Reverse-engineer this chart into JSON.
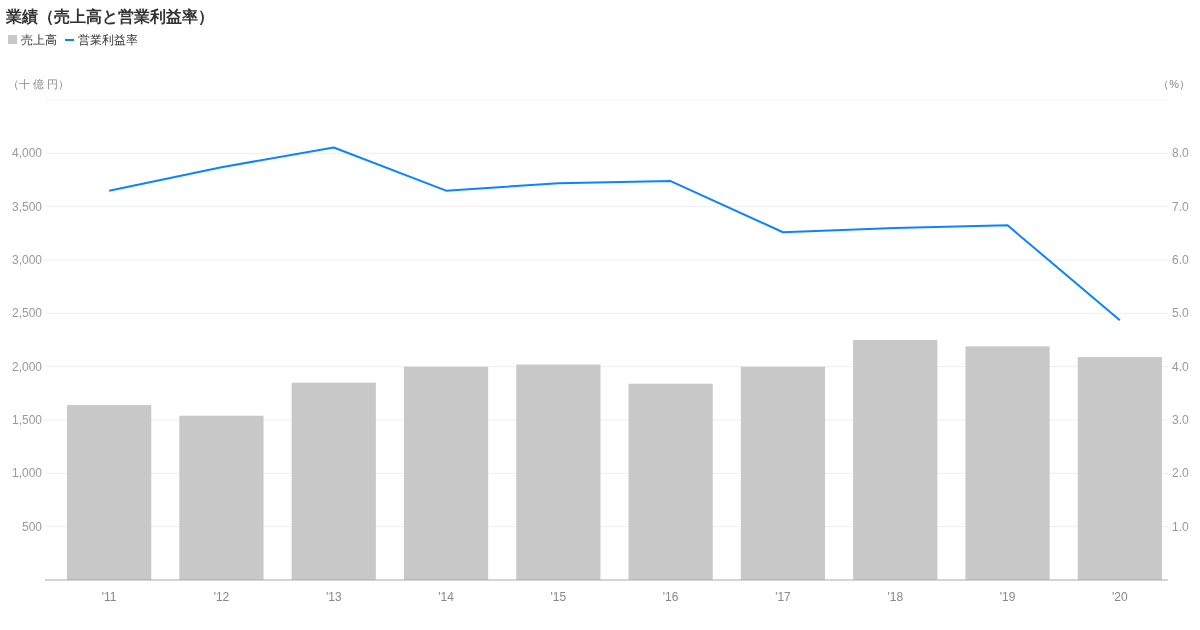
{
  "chart_data": {
    "type": "bar",
    "title": "業績（売上高と営業利益率）",
    "ylabel": "（十 億 円）",
    "y2label": "（%）",
    "categories": [
      "'11",
      "'12",
      "'13",
      "'14",
      "'15",
      "'16",
      "'17",
      "'18",
      "'19",
      "'20"
    ],
    "series": [
      {
        "name": "売上高",
        "color": "#c8c8c8",
        "values": [
          1640,
          1540,
          1850,
          2000,
          2020,
          1840,
          2000,
          2250,
          2190,
          2090
        ]
      },
      {
        "name": "営業利益率",
        "type": "line",
        "axis": "y2",
        "color": "#0a84ff",
        "values": [
          7.3,
          7.74,
          8.11,
          7.3,
          7.44,
          7.48,
          6.52,
          6.6,
          6.65,
          4.87
        ]
      }
    ],
    "ylim": [
      0,
      4500
    ],
    "yticks": [
      {
        "value": 500,
        "label": "500"
      },
      {
        "value": 1000,
        "label": "1,000"
      },
      {
        "value": 1500,
        "label": "1,500"
      },
      {
        "value": 2000,
        "label": "2,000"
      },
      {
        "value": 2500,
        "label": "2,500"
      },
      {
        "value": 3000,
        "label": "3,000"
      },
      {
        "value": 3500,
        "label": "3,500"
      },
      {
        "value": 4000,
        "label": "4,000"
      }
    ],
    "y2lim": [
      0,
      9
    ],
    "y2ticks": [
      {
        "value": 1,
        "label": "1.0"
      },
      {
        "value": 2,
        "label": "2.0"
      },
      {
        "value": 3,
        "label": "3.0"
      },
      {
        "value": 4,
        "label": "4.0"
      },
      {
        "value": 5,
        "label": "5.0"
      },
      {
        "value": 6,
        "label": "6.0"
      },
      {
        "value": 7,
        "label": "7.0"
      },
      {
        "value": 8,
        "label": "8.0"
      }
    ],
    "grid": "y",
    "legend": "top left",
    "marker": "none",
    "line_style": "solid"
  }
}
